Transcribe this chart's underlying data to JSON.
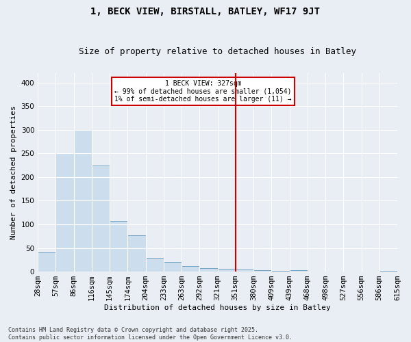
{
  "title": "1, BECK VIEW, BIRSTALL, BATLEY, WF17 9JT",
  "subtitle": "Size of property relative to detached houses in Batley",
  "xlabel": "Distribution of detached houses by size in Batley",
  "ylabel": "Number of detached properties",
  "bar_values": [
    40,
    250,
    300,
    225,
    107,
    77,
    29,
    20,
    12,
    8,
    6,
    4,
    3,
    2,
    3,
    0,
    0,
    0,
    0,
    2
  ],
  "bin_labels": [
    "28sqm",
    "57sqm",
    "86sqm",
    "116sqm",
    "145sqm",
    "174sqm",
    "204sqm",
    "233sqm",
    "263sqm",
    "292sqm",
    "321sqm",
    "351sqm",
    "380sqm",
    "409sqm",
    "439sqm",
    "468sqm",
    "498sqm",
    "527sqm",
    "556sqm",
    "586sqm",
    "615sqm"
  ],
  "bar_color": "#ccdded",
  "bar_edge_color": "#6699bb",
  "vline_x_index": 10,
  "vline_color": "#cc0000",
  "ylim": [
    0,
    420
  ],
  "yticks": [
    0,
    50,
    100,
    150,
    200,
    250,
    300,
    350,
    400
  ],
  "annotation_text": "1 BECK VIEW: 327sqm\n← 99% of detached houses are smaller (1,054)\n1% of semi-detached houses are larger (11) →",
  "annotation_box_color": "#ffffff",
  "annotation_box_edgecolor": "#cc0000",
  "footer_text": "Contains HM Land Registry data © Crown copyright and database right 2025.\nContains public sector information licensed under the Open Government Licence v3.0.",
  "background_color": "#e8eef4",
  "grid_color": "#ffffff",
  "title_fontsize": 10,
  "subtitle_fontsize": 9,
  "label_fontsize": 8,
  "tick_fontsize": 7.5
}
